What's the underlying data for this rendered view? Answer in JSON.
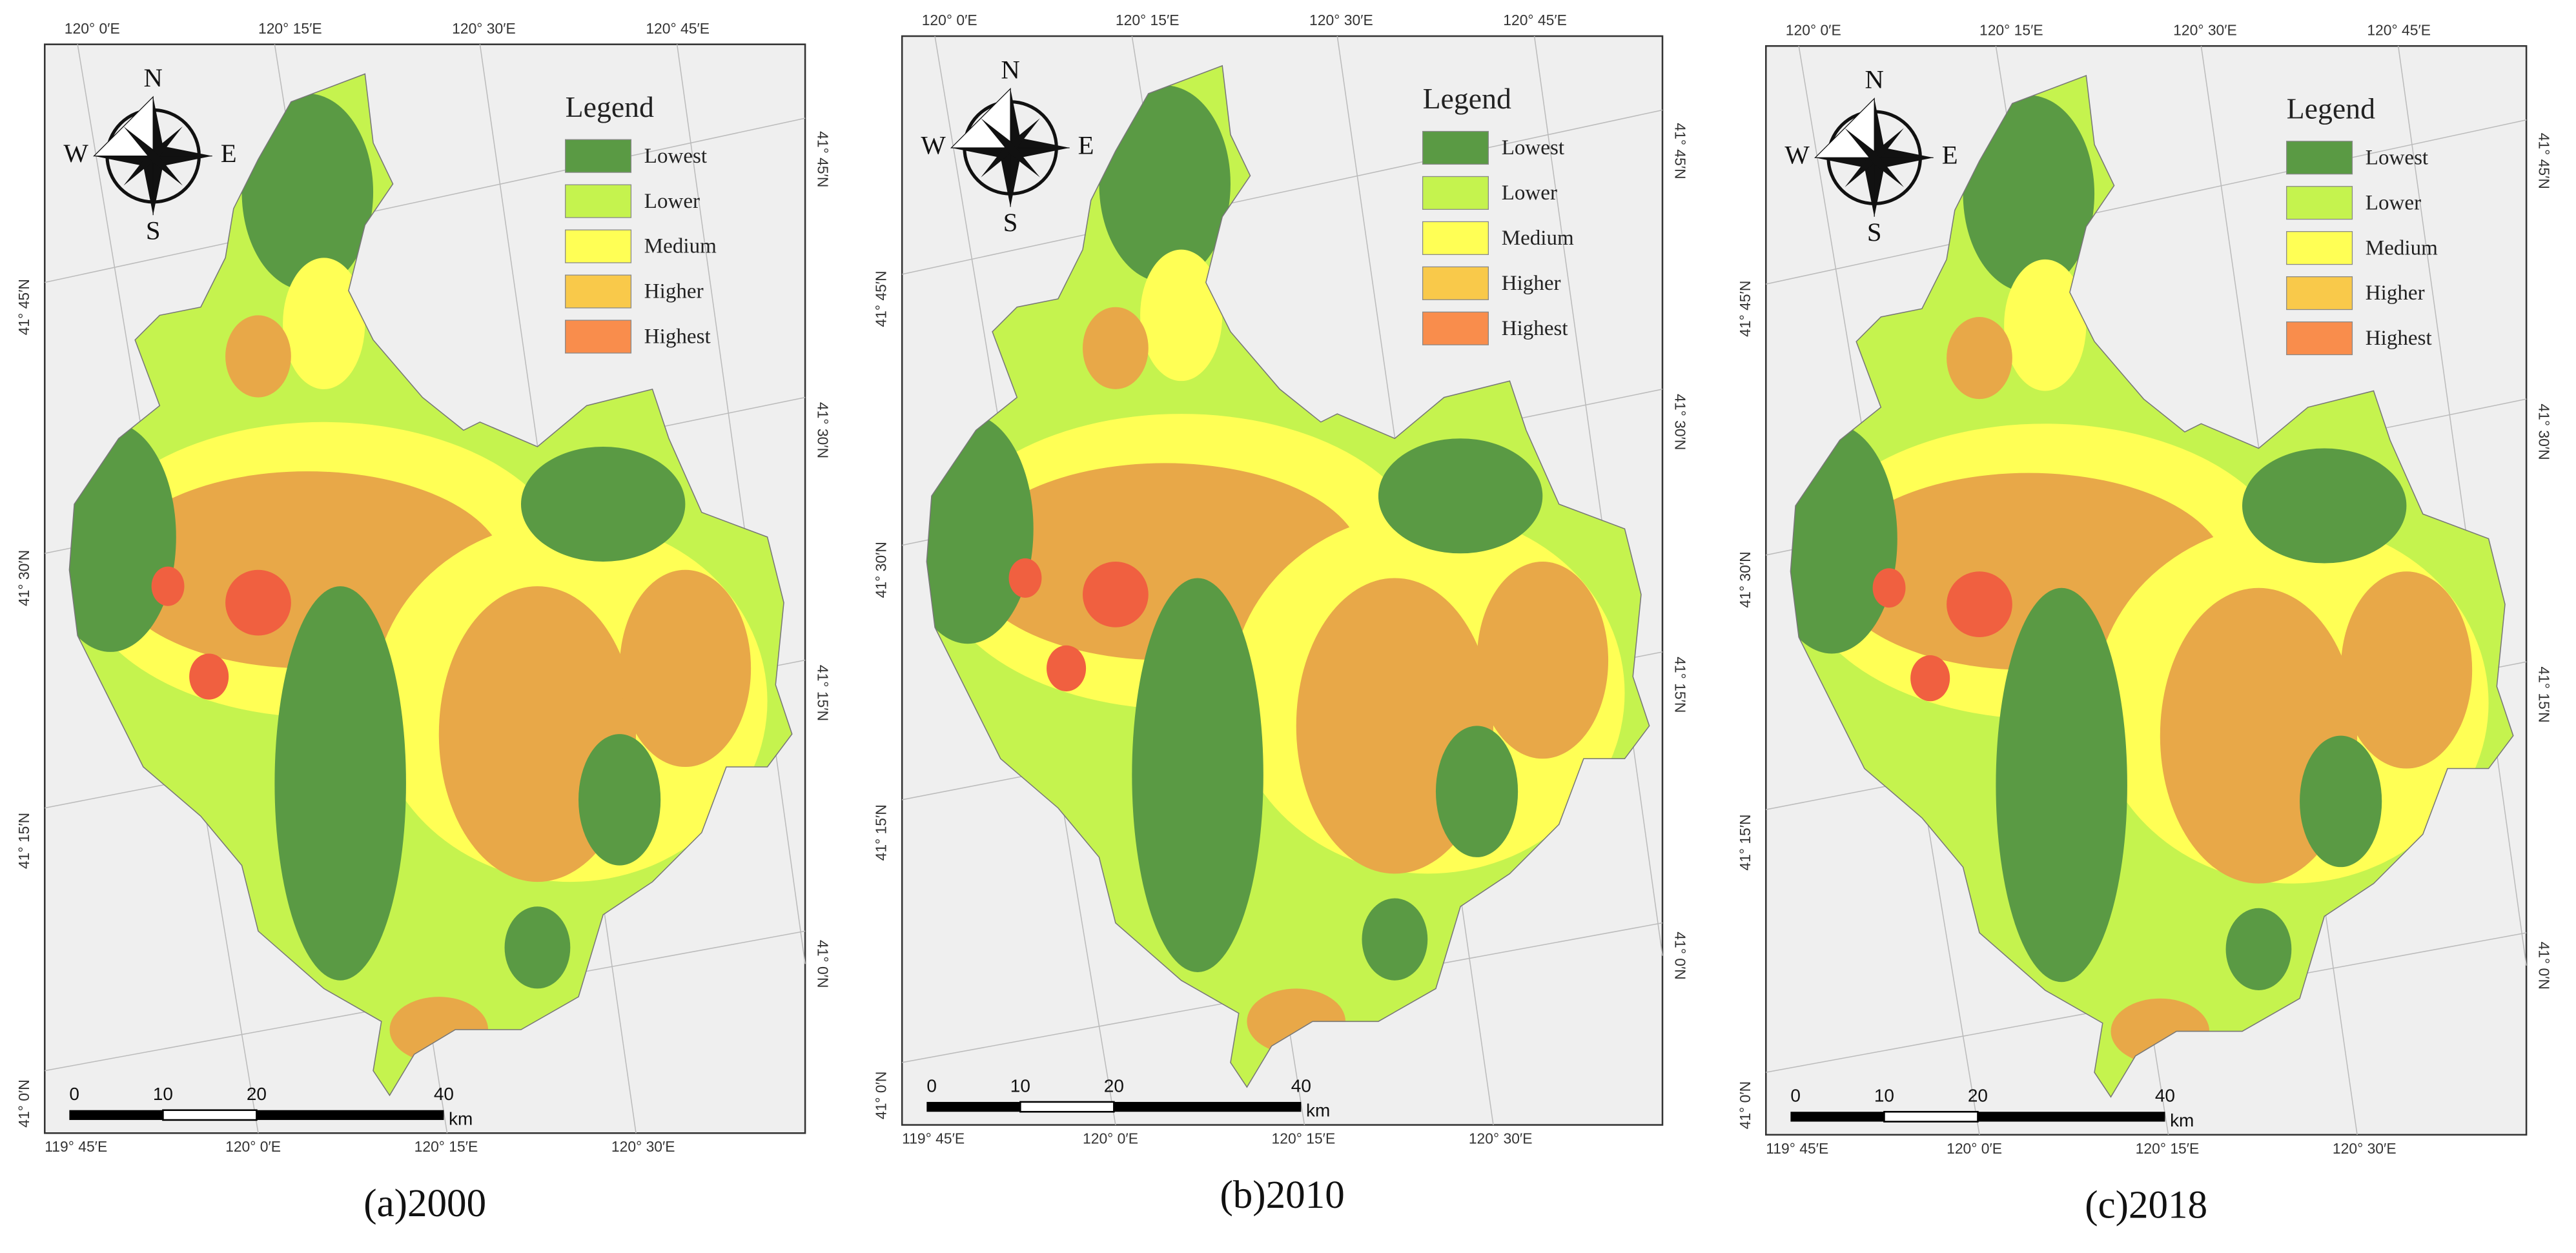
{
  "legend": {
    "title": "Legend",
    "items": [
      {
        "label": "Lowest",
        "color": "#5a9a44"
      },
      {
        "label": "Lower",
        "color": "#c5f34e"
      },
      {
        "label": "Medium",
        "color": "#ffff55"
      },
      {
        "label": "Higher",
        "color": "#f9c94a"
      },
      {
        "label": "Highest",
        "color": "#f98d4c"
      }
    ]
  },
  "compass": {
    "north": "N",
    "east": "E",
    "south": "S",
    "west": "W"
  },
  "coords": {
    "top": [
      "120° 0′E",
      "120° 15′E",
      "120° 30′E",
      "120° 45′E"
    ],
    "bottom": [
      "119° 45′E",
      "120° 0′E",
      "120° 15′E",
      "120° 30′E"
    ],
    "left": [
      "41° 45′N",
      "41° 30′N",
      "41° 15′N",
      "41° 0′N"
    ],
    "right": [
      "41° 45′N",
      "41° 30′N",
      "41° 15′N",
      "41° 0′N"
    ]
  },
  "scale_bar": {
    "labels": [
      "0",
      "10",
      "20",
      "40"
    ],
    "unit": "km"
  },
  "panels": [
    {
      "caption": "(a)2000"
    },
    {
      "caption": "(b)2010"
    },
    {
      "caption": "(c)2018"
    }
  ]
}
